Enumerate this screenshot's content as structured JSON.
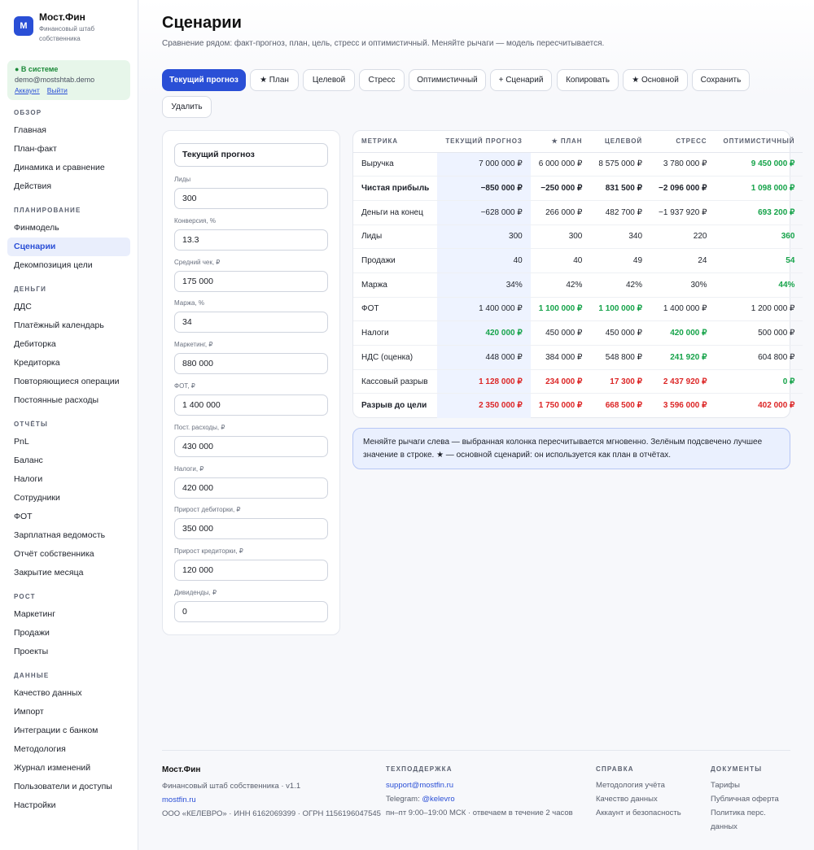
{
  "brand": {
    "name": "Мост.Фин",
    "subtitle": "Финансовый штаб собственника",
    "logo_letter": "М"
  },
  "account": {
    "status": "● В системе",
    "email": "demo@mostshtab.demo",
    "account_link": "Аккаунт",
    "logout_link": "Выйти"
  },
  "nav": [
    {
      "section": "ОБЗОР",
      "items": [
        "Главная",
        "План-факт",
        "Динамика и сравнение",
        "Действия"
      ]
    },
    {
      "section": "ПЛАНИРОВАНИЕ",
      "items": [
        "Финмодель",
        "Сценарии",
        "Декомпозиция цели"
      ]
    },
    {
      "section": "ДЕНЬГИ",
      "items": [
        "ДДС",
        "Платёжный календарь",
        "Дебиторка",
        "Кредиторка",
        "Повторяющиеся операции",
        "Постоянные расходы"
      ]
    },
    {
      "section": "ОТЧЁТЫ",
      "items": [
        "PnL",
        "Баланс",
        "Налоги",
        "Сотрудники",
        "ФОТ",
        "Зарплатная ведомость",
        "Отчёт собственника",
        "Закрытие месяца"
      ]
    },
    {
      "section": "РОСТ",
      "items": [
        "Маркетинг",
        "Продажи",
        "Проекты"
      ]
    },
    {
      "section": "ДАННЫЕ",
      "items": [
        "Качество данных",
        "Импорт",
        "Интеграции с банком",
        "Методология",
        "Журнал изменений",
        "Пользователи и доступы",
        "Настройки"
      ]
    }
  ],
  "active_nav": "Сценарии",
  "page": {
    "title": "Сценарии",
    "subtitle": "Сравнение рядом: факт-прогноз, план, цель, стресс и оптимистичный. Меняйте рычаги — модель пересчитывается."
  },
  "toolbar": [
    "Текущий прогноз",
    "★ План",
    "Целевой",
    "Стресс",
    "Оптимистичный",
    "+ Сценарий",
    "Копировать",
    "★ Основной",
    "Сохранить",
    "Удалить"
  ],
  "scenario_name": "Текущий прогноз",
  "fields": [
    {
      "label": "Лиды",
      "value": "300"
    },
    {
      "label": "Конверсия, %",
      "value": "13.3"
    },
    {
      "label": "Средний чек, ₽",
      "value": "175 000"
    },
    {
      "label": "Маржа, %",
      "value": "34"
    },
    {
      "label": "Маркетинг, ₽",
      "value": "880 000"
    },
    {
      "label": "ФОТ, ₽",
      "value": "1 400 000"
    },
    {
      "label": "Пост. расходы, ₽",
      "value": "430 000"
    },
    {
      "label": "Налоги, ₽",
      "value": "420 000"
    },
    {
      "label": "Прирост дебиторки, ₽",
      "value": "350 000"
    },
    {
      "label": "Прирост кредиторки, ₽",
      "value": "120 000"
    },
    {
      "label": "Дивиденды, ₽",
      "value": "0"
    }
  ],
  "table": {
    "headers": [
      "МЕТРИКА",
      "ТЕКУЩИЙ ПРОГНОЗ",
      "★ ПЛАН",
      "ЦЕЛЕВОЙ",
      "СТРЕСС",
      "ОПТИМИСТИЧНЫЙ"
    ],
    "rows": [
      {
        "metric": "Выручка",
        "values": [
          "7 000 000 ₽",
          "6 000 000 ₽",
          "8 575 000 ₽",
          "3 780 000 ₽",
          "9 450 000 ₽"
        ],
        "bold": false
      },
      {
        "metric": "Чистая прибыль",
        "values": [
          "−850 000 ₽",
          "−250 000 ₽",
          "831 500 ₽",
          "−2 096 000 ₽",
          "1 098 000 ₽"
        ],
        "bold": true
      },
      {
        "metric": "Деньги на конец",
        "values": [
          "−628 000 ₽",
          "266 000 ₽",
          "482 700 ₽",
          "−1 937 920 ₽",
          "693 200 ₽"
        ],
        "bold": false
      },
      {
        "metric": "Лиды",
        "values": [
          "300",
          "300",
          "340",
          "220",
          "360"
        ],
        "bold": false
      },
      {
        "metric": "Продажи",
        "values": [
          "40",
          "40",
          "49",
          "24",
          "54"
        ],
        "bold": false
      },
      {
        "metric": "Маржа",
        "values": [
          "34%",
          "42%",
          "42%",
          "30%",
          "44%"
        ],
        "bold": false
      },
      {
        "metric": "ФОТ",
        "values": [
          "1 400 000 ₽",
          "1 100 000 ₽",
          "1 100 000 ₽",
          "1 400 000 ₽",
          "1 200 000 ₽"
        ],
        "bold": false
      },
      {
        "metric": "Налоги",
        "values": [
          "420 000 ₽",
          "450 000 ₽",
          "450 000 ₽",
          "420 000 ₽",
          "500 000 ₽"
        ],
        "bold": false
      },
      {
        "metric": "НДС (оценка)",
        "values": [
          "448 000 ₽",
          "384 000 ₽",
          "548 800 ₽",
          "241 920 ₽",
          "604 800 ₽"
        ],
        "bold": false
      },
      {
        "metric": "Кассовый разрыв",
        "values": [
          "1 128 000 ₽",
          "234 000 ₽",
          "17 300 ₽",
          "2 437 920 ₽",
          "0 ₽"
        ],
        "bold": false
      },
      {
        "metric": "Разрыв до цели",
        "values": [
          "2 350 000 ₽",
          "1 750 000 ₽",
          "668 500 ₽",
          "3 596 000 ₽",
          "402 000 ₽"
        ],
        "bold": true
      }
    ],
    "styles": [
      [
        "",
        "",
        "",
        "",
        "good"
      ],
      [
        "",
        "",
        "",
        "",
        "good"
      ],
      [
        "",
        "",
        "",
        "",
        "good"
      ],
      [
        "",
        "",
        "",
        "",
        "good"
      ],
      [
        "",
        "",
        "",
        "",
        "good"
      ],
      [
        "",
        "",
        "",
        "",
        "good"
      ],
      [
        "",
        "good",
        "good",
        "",
        ""
      ],
      [
        "good",
        "",
        "",
        "good",
        ""
      ],
      [
        "",
        "",
        "",
        "good",
        ""
      ],
      [
        "bad",
        "bad",
        "bad",
        "bad",
        "good"
      ],
      [
        "bad",
        "bad",
        "bad",
        "bad",
        "bad"
      ]
    ]
  },
  "note": "Меняйте рычаги слева — выбранная колонка пересчитывается мгновенно. Зелёным подсвечено лучшее значение в строке. ★ — основной сценарий: он используется как план в отчётах.",
  "footer": {
    "brand": "Мост.Фин",
    "tagline": "Финансовый штаб собственника · v1.1",
    "site": "mostfin.ru",
    "legal": "ООО «КЕЛЕВРО» · ИНН 6162069399 · ОГРН 1156196047545",
    "support_title": "ТЕХПОДДЕРЖКА",
    "support_email": "support@mostfin.ru",
    "telegram_label": "Telegram:",
    "telegram": "@kelevro",
    "hours": "пн–пт 9:00–19:00 МСК · отвечаем в течение 2 часов",
    "help_title": "СПРАВКА",
    "help_links": [
      "Методология учёта",
      "Качество данных",
      "Аккаунт и безопасность"
    ],
    "docs_title": "ДОКУМЕНТЫ",
    "docs_links": [
      "Тарифы",
      "Публичная оферта",
      "Политика перс. данных"
    ]
  },
  "colors": {
    "accent": "#2a4fd6",
    "good": "#16a34a",
    "bad": "#dc2626",
    "status": "#1d8a3a"
  }
}
